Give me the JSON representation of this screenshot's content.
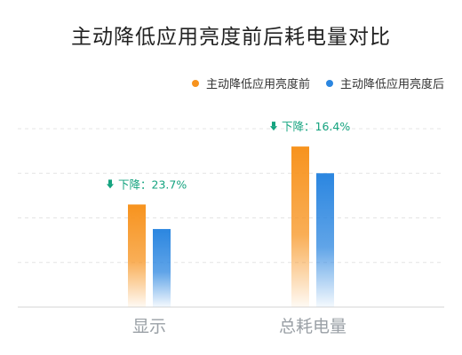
{
  "chart_data": {
    "type": "bar",
    "title": "主动降低应用亮度前后耗电量对比",
    "categories": [
      "显示",
      "总耗电量"
    ],
    "series": [
      {
        "name": "主动降低应用亮度前",
        "values": [
          2.3,
          3.6
        ],
        "color": "#f7931e"
      },
      {
        "name": "主动降低应用亮度后",
        "values": [
          1.75,
          3.0
        ],
        "color": "#2b86e0"
      }
    ],
    "annotations": [
      "下降：23.7%",
      "下降：16.4%"
    ],
    "annotation_color": "#14a37f",
    "ylim": [
      0,
      4
    ],
    "grid": true,
    "legend": "top-right",
    "xlabel": "",
    "ylabel": ""
  }
}
